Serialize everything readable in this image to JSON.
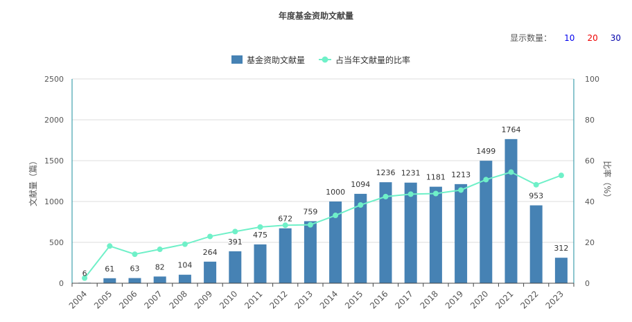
{
  "chart_data": {
    "type": "bar",
    "title": "年度基金资助文献量",
    "display_count": {
      "label": "显示数量：",
      "options": [
        {
          "value": "10",
          "color": "#0000ee"
        },
        {
          "value": "20",
          "color": "#ee0000"
        },
        {
          "value": "30",
          "color": "#0000aa"
        }
      ]
    },
    "categories": [
      "2004",
      "2005",
      "2006",
      "2007",
      "2008",
      "2009",
      "2010",
      "2011",
      "2012",
      "2013",
      "2014",
      "2015",
      "2016",
      "2017",
      "2018",
      "2019",
      "2020",
      "2021",
      "2022",
      "2023"
    ],
    "series": [
      {
        "name": "基金资助文献量",
        "type": "bar",
        "color": "#4682b4",
        "axis": "left",
        "values": [
          6,
          61,
          63,
          82,
          104,
          264,
          391,
          475,
          672,
          759,
          1000,
          1094,
          1236,
          1231,
          1181,
          1213,
          1499,
          1764,
          953,
          312
        ]
      },
      {
        "name": "占当年文献量的比率",
        "type": "line",
        "color": "#6ff0c8",
        "axis": "right",
        "values": [
          2.5,
          18.2,
          14.2,
          16.6,
          19.1,
          22.9,
          25.3,
          27.5,
          28.4,
          28.6,
          33.2,
          38.3,
          42.4,
          43.6,
          43.9,
          45.6,
          50.7,
          54.4,
          48.2,
          52.8
        ]
      }
    ],
    "ylabel": "文献量（篇）",
    "ylabel2": "比率（%）",
    "ylim": [
      0,
      2500
    ],
    "yticks": [
      0,
      500,
      1000,
      1500,
      2000,
      2500
    ],
    "ylim2": [
      0,
      100
    ],
    "yticks2": [
      0,
      20,
      40,
      60,
      80,
      100
    ],
    "legend_position": "top-center",
    "grid": true
  }
}
